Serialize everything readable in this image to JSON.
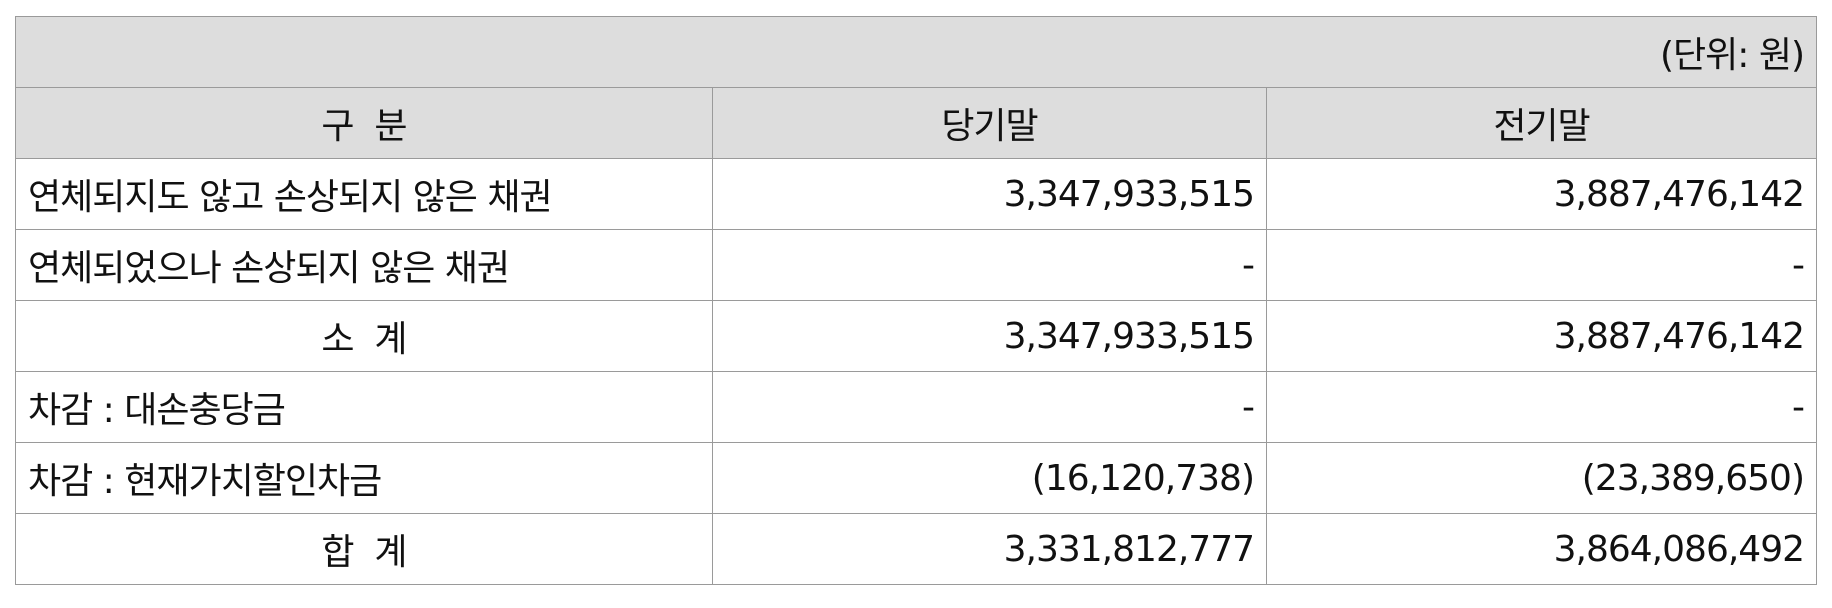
{
  "table": {
    "unit": "(단위: 원)",
    "headers": [
      "구  분",
      "당기말",
      "전기말"
    ],
    "rows": [
      {
        "label": "연체되지도 않고 손상되지 않은 채권",
        "current": "3,347,933,515",
        "prior": "3,887,476,142",
        "centered": false
      },
      {
        "label": "연체되었으나 손상되지 않은 채권",
        "current": "-",
        "prior": "-",
        "centered": false
      },
      {
        "label": "소  계",
        "current": "3,347,933,515",
        "prior": "3,887,476,142",
        "centered": true
      },
      {
        "label": "차감 : 대손충당금",
        "current": "-",
        "prior": "-",
        "centered": false
      },
      {
        "label": "차감 : 현재가치할인차금",
        "current": "(16,120,738)",
        "prior": "(23,389,650)",
        "centered": false
      },
      {
        "label": "합  계",
        "current": "3,331,812,777",
        "prior": "3,864,086,492",
        "centered": true
      }
    ]
  }
}
